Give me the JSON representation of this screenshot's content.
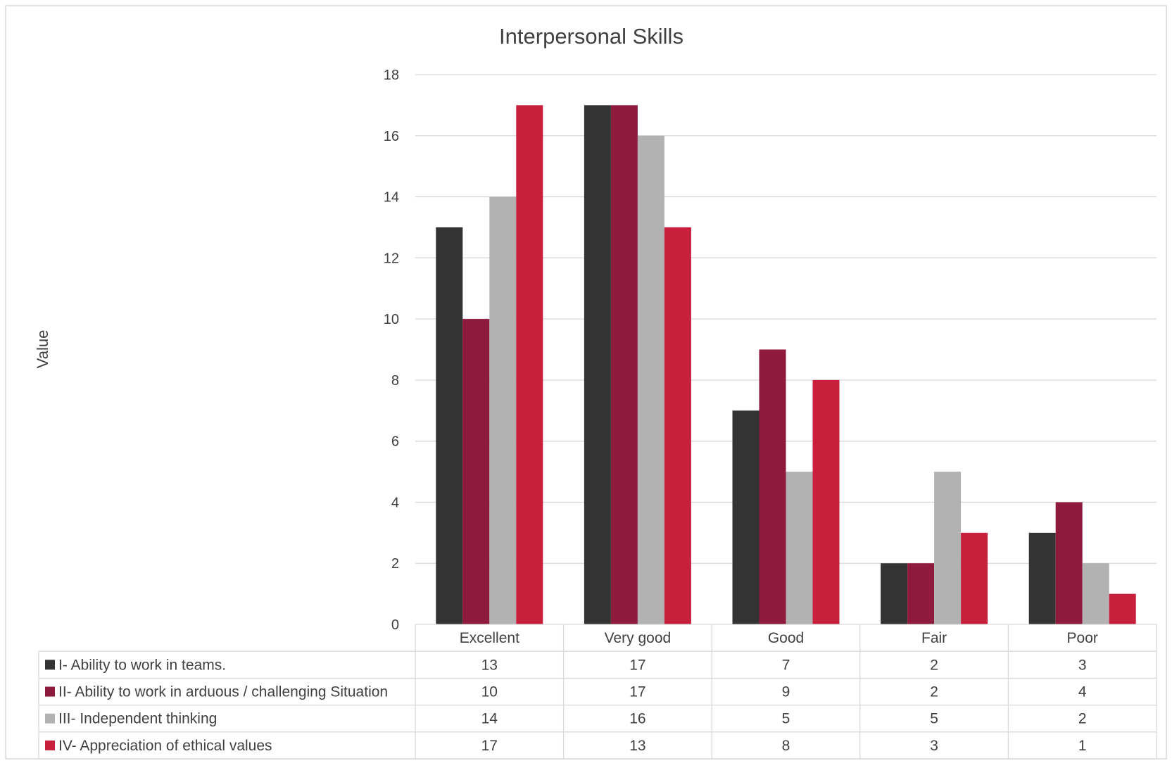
{
  "chart_data": {
    "type": "bar",
    "title": "Interpersonal Skills",
    "xlabel": "",
    "ylabel": "Value",
    "ylim": [
      0,
      18
    ],
    "yticks": [
      0,
      2,
      4,
      6,
      8,
      10,
      12,
      14,
      16,
      18
    ],
    "grid": true,
    "legend_placement": "data-table",
    "categories": [
      "Excellent",
      "Very good",
      "Good",
      "Fair",
      "Poor"
    ],
    "series": [
      {
        "name": "I- Ability to work in teams.",
        "color": "#333333",
        "values": [
          13,
          17,
          7,
          2,
          3
        ]
      },
      {
        "name": "II- Ability to work in arduous / challenging Situation",
        "color": "#8e1a3d",
        "values": [
          10,
          17,
          9,
          2,
          4
        ]
      },
      {
        "name": "III- Independent thinking",
        "color": "#b2b2b2",
        "values": [
          14,
          16,
          5,
          5,
          2
        ]
      },
      {
        "name": "IV- Appreciation of ethical values",
        "color": "#c71f3c",
        "values": [
          17,
          13,
          8,
          3,
          1
        ]
      }
    ]
  }
}
